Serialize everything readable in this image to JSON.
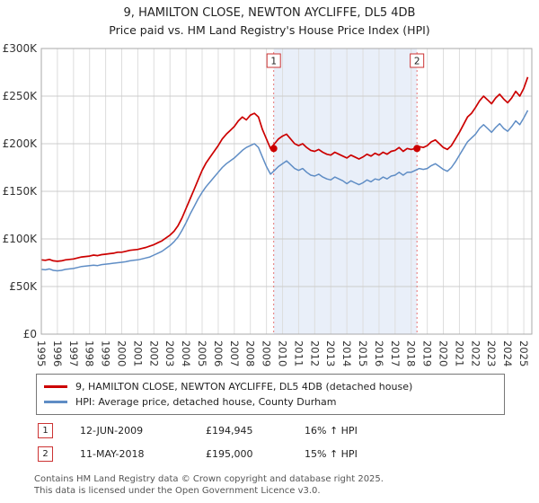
{
  "title": "9, HAMILTON CLOSE, NEWTON AYCLIFFE, DL5 4DB",
  "subtitle": "Price paid vs. HM Land Registry's House Price Index (HPI)",
  "chart_data": {
    "type": "line",
    "x_start": 1995,
    "x_step": 0.25,
    "xlim": [
      1995,
      2025.5
    ],
    "ylim": [
      0,
      300
    ],
    "y_unit": "GBP thousands",
    "grid": true,
    "y_ticks": [
      0,
      50,
      100,
      150,
      200,
      250,
      300
    ],
    "y_tick_labels": [
      "£0",
      "£50K",
      "£100K",
      "£150K",
      "£200K",
      "£250K",
      "£300K"
    ],
    "x_ticks": [
      1995,
      1996,
      1997,
      1998,
      1999,
      2000,
      2001,
      2002,
      2003,
      2004,
      2005,
      2006,
      2007,
      2008,
      2009,
      2010,
      2011,
      2012,
      2013,
      2014,
      2015,
      2016,
      2017,
      2018,
      2019,
      2020,
      2021,
      2022,
      2023,
      2024,
      2025
    ],
    "series": [
      {
        "name": "9, HAMILTON CLOSE, NEWTON AYCLIFFE, DL5 4DB (detached house)",
        "color": "#cc0000",
        "values": [
          78,
          77.5,
          78.5,
          77,
          76.5,
          77,
          78,
          78.5,
          79,
          80,
          81,
          81.5,
          82,
          83,
          82.5,
          83.5,
          84,
          84.5,
          85,
          86,
          86,
          87,
          88,
          88.5,
          89,
          90,
          91,
          92.5,
          94,
          96,
          98,
          101,
          104,
          108,
          114,
          122,
          132,
          142,
          152,
          162,
          172,
          180,
          186,
          192,
          198,
          205,
          210,
          214,
          218,
          224,
          228,
          225,
          230,
          232,
          228,
          215,
          205,
          195,
          200,
          205,
          208,
          210,
          205,
          200,
          198,
          200,
          196,
          193,
          192,
          194,
          191,
          189,
          188,
          191,
          189,
          187,
          185,
          188,
          186,
          184,
          186,
          189,
          187,
          190,
          188,
          191,
          189,
          192,
          193,
          196,
          192,
          195,
          194,
          195,
          197,
          196,
          198,
          202,
          204,
          200,
          196,
          194,
          198,
          205,
          212,
          220,
          228,
          232,
          238,
          245,
          250,
          246,
          242,
          248,
          252,
          247,
          243,
          248,
          255,
          250,
          258,
          270
        ]
      },
      {
        "name": "HPI: Average price, detached house, County Durham",
        "color": "#5f8dc5",
        "values": [
          68,
          67.5,
          68.5,
          67,
          66.5,
          67,
          68,
          68.5,
          69,
          70,
          71,
          71.5,
          72,
          72.5,
          72,
          73,
          73.5,
          74,
          74.5,
          75,
          75.5,
          76,
          77,
          77.5,
          78,
          79,
          80,
          81,
          83,
          85,
          87,
          90,
          93,
          97,
          102,
          109,
          117,
          126,
          134,
          142,
          149,
          155,
          160,
          165,
          170,
          175,
          179,
          182,
          185,
          189,
          193,
          196,
          198,
          200,
          196,
          186,
          176,
          168,
          172,
          176,
          179,
          182,
          178,
          174,
          172,
          174,
          170,
          167,
          166,
          168,
          165,
          163,
          162,
          165,
          163,
          161,
          158,
          161,
          159,
          157,
          159,
          162,
          160,
          163,
          162,
          165,
          163,
          166,
          167,
          170,
          167,
          170,
          170,
          172,
          174,
          173,
          174,
          177,
          179,
          176,
          173,
          171,
          175,
          181,
          188,
          195,
          202,
          206,
          210,
          216,
          220,
          216,
          212,
          217,
          221,
          216,
          213,
          218,
          224,
          220,
          227,
          235
        ]
      }
    ],
    "sales": [
      {
        "label": "1",
        "x": 2009.45,
        "y": 194.945
      },
      {
        "label": "2",
        "x": 2018.36,
        "y": 195.0
      }
    ],
    "shaded_region": {
      "from": 2009.45,
      "to": 2018.36,
      "color": "#e9eff9"
    },
    "marker_line_color": "#e57373",
    "grid_color": "#cccccc",
    "axis_color": "#aaaaaa"
  },
  "annotations": [
    {
      "label": "1",
      "date": "12-JUN-2009",
      "price": "£194,945",
      "hpi": "16% ↑ HPI"
    },
    {
      "label": "2",
      "date": "11-MAY-2018",
      "price": "£195,000",
      "hpi": "15% ↑ HPI"
    }
  ],
  "footer": {
    "line1": "Contains HM Land Registry data © Crown copyright and database right 2025.",
    "line2": "This data is licensed under the Open Government Licence v3.0."
  }
}
